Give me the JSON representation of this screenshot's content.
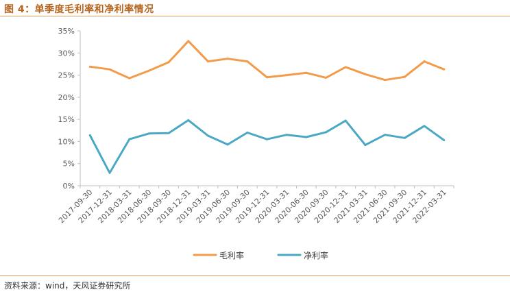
{
  "figure": {
    "title": "图 4：单季度毛利率和净利率情况",
    "source": "资料来源：wind，天风证券研究所"
  },
  "colors": {
    "gross": "#f29b4a",
    "net": "#4ba8c4",
    "accent": "#b5651d"
  },
  "chart_data": {
    "type": "line",
    "title": "",
    "xlabel": "",
    "ylabel": "",
    "ylim": [
      0,
      35
    ],
    "yticks": [
      "0%",
      "5%",
      "10%",
      "15%",
      "20%",
      "25%",
      "30%",
      "35%"
    ],
    "grid": false,
    "legend": "bottom-center",
    "categories": [
      "2017-09-30",
      "2017-12-31",
      "2018-03-31",
      "2018-06-30",
      "2018-09-30",
      "2018-12-31",
      "2019-03-31",
      "2019-06-30",
      "2019-09-30",
      "2019-12-31",
      "2020-03-31",
      "2020-06-30",
      "2020-09-30",
      "2020-12-31",
      "2021-03-31",
      "2021-06-30",
      "2021-09-30",
      "2021-12-31",
      "2022-03-31"
    ],
    "series": [
      {
        "name": "毛利率",
        "color": "#f29b4a",
        "values": [
          26.9,
          26.3,
          24.3,
          26.0,
          27.9,
          32.7,
          28.1,
          28.7,
          28.1,
          24.5,
          25.0,
          25.5,
          24.4,
          26.8,
          25.2,
          23.9,
          24.6,
          28.1,
          26.3
        ]
      },
      {
        "name": "净利率",
        "color": "#4ba8c4",
        "values": [
          11.4,
          2.9,
          10.5,
          11.8,
          11.9,
          14.8,
          11.3,
          9.3,
          12.0,
          10.5,
          11.5,
          11.0,
          12.1,
          14.7,
          9.2,
          11.5,
          10.8,
          13.5,
          10.3
        ]
      }
    ]
  }
}
